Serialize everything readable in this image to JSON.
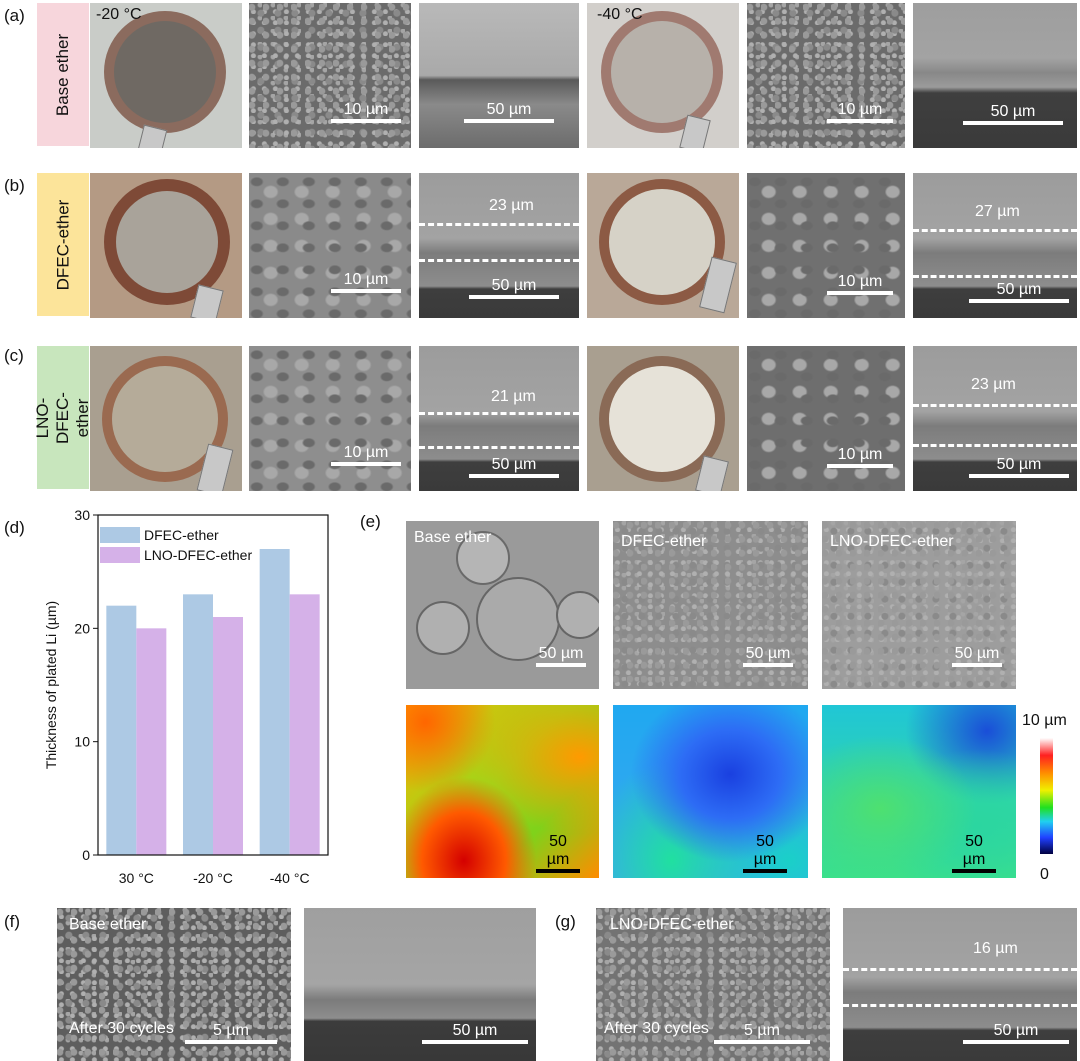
{
  "panels": {
    "a": "(a)",
    "b": "(b)",
    "c": "(c)",
    "d": "(d)",
    "e": "(e)",
    "f": "(f)",
    "g": "(g)"
  },
  "rows": {
    "base": {
      "label": "Base ether",
      "color": "#f7d6dc"
    },
    "dfec": {
      "label": "DFEC-ether",
      "color": "#fce49a"
    },
    "lno": {
      "label": "LNO-DFEC-ether",
      "color": "#c8e6bd"
    }
  },
  "temps": {
    "t1": "-20 °C",
    "t2": "-40 °C"
  },
  "scale_bars": {
    "s10": "10 µm",
    "s50": "50 µm",
    "s5": "5 µm"
  },
  "thickness_labels": {
    "b1": "23 µm",
    "b2": "27 µm",
    "c1": "21 µm",
    "c2": "23 µm",
    "g": "16 µm"
  },
  "panel_e": {
    "labels": [
      "Base ether",
      "DFEC-ether",
      "LNO-DFEC-ether"
    ],
    "colorbar_max": "10 µm",
    "colorbar_min": "0"
  },
  "panel_f": {
    "label": "Base ether",
    "note": "After 30 cycles"
  },
  "panel_g": {
    "label": "LNO-DFEC-ether",
    "note": "After 30 cycles"
  },
  "chart_data": {
    "type": "bar",
    "categories": [
      "30 °C",
      "-20 °C",
      "-40 °C"
    ],
    "series": [
      {
        "name": "DFEC-ether",
        "values": [
          22,
          23,
          27
        ],
        "color": "#adc9e4"
      },
      {
        "name": "LNO-DFEC-ether",
        "values": [
          20,
          21,
          23
        ],
        "color": "#d5b1e8"
      }
    ],
    "ylabel": "Thickness of plated Li (µm)",
    "xlabel": "",
    "ylim": [
      0,
      30
    ],
    "yticks": [
      0,
      10,
      20,
      30
    ],
    "legend": "top-left",
    "grid": false
  }
}
